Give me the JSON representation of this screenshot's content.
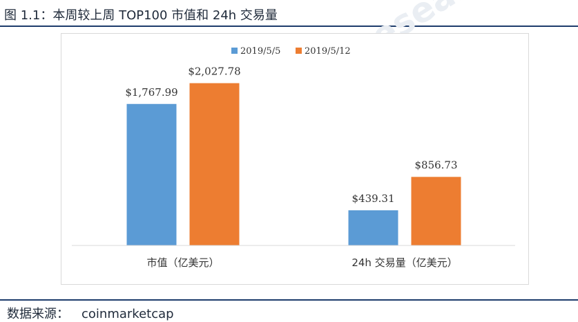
{
  "figure": {
    "title": "图 1.1：本周较上周 TOP100 市值和 24h 交易量",
    "source_label": "数据来源：",
    "source_value": "coinmarketcap",
    "watermark": "Huobi Research"
  },
  "colors": {
    "series1": "#5b9bd5",
    "series2": "#ed7d31",
    "rule": "#1c3b6b"
  },
  "chart_data": {
    "type": "bar",
    "categories": [
      "市值（亿美元）",
      "24h 交易量（亿美元）"
    ],
    "series": [
      {
        "name": "2019/5/5",
        "values": [
          1767.99,
          439.31
        ],
        "labels": [
          "$1,767.99",
          "$439.31"
        ]
      },
      {
        "name": "2019/5/12",
        "values": [
          2027.78,
          856.73
        ],
        "labels": [
          "$2,027.78",
          "$856.73"
        ]
      }
    ],
    "title": "",
    "xlabel": "",
    "ylabel": "",
    "ylim": [
      0,
      2300
    ],
    "grid": false,
    "legend": "top"
  }
}
